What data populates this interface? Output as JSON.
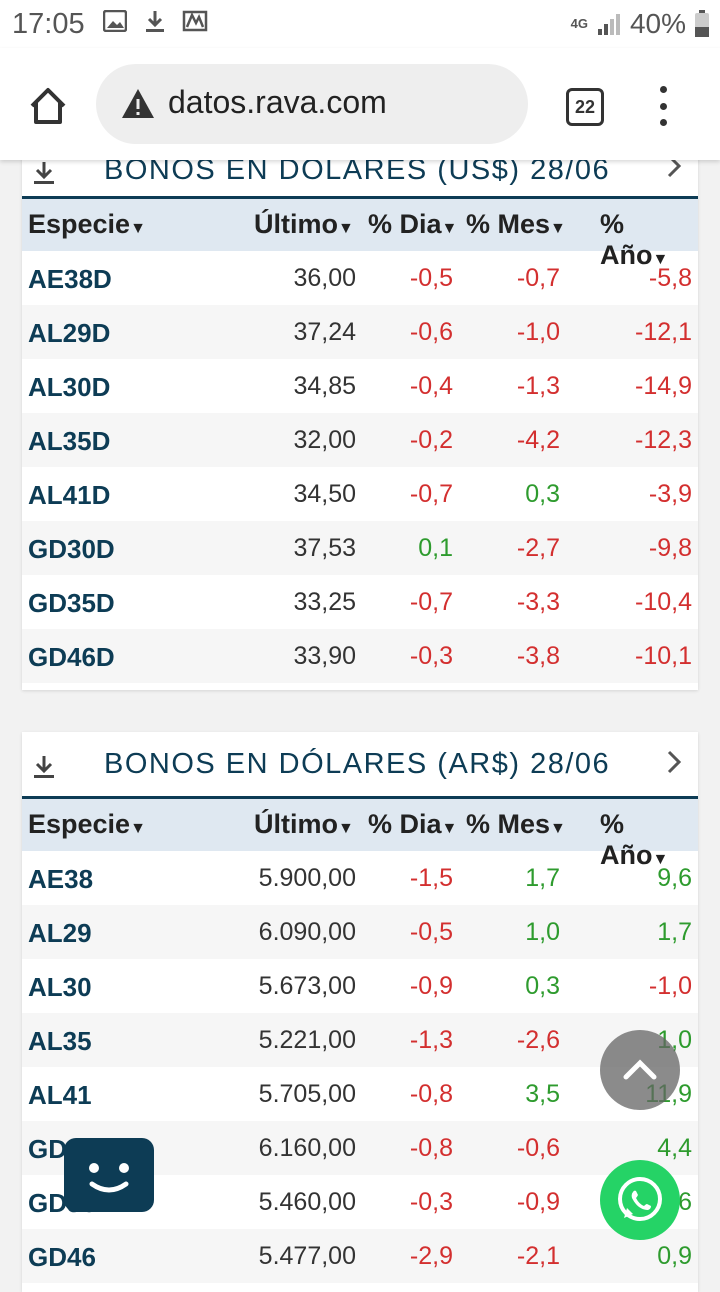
{
  "status_bar": {
    "time": "17:05",
    "network": "4G",
    "battery": "40%"
  },
  "browser": {
    "url": "datos.rava.com",
    "tab_count": "22"
  },
  "table_headers": {
    "especie": "Especie",
    "ultimo": "Último",
    "dia": "% Dia",
    "mes": "% Mes",
    "ano": "% Año"
  },
  "sections": [
    {
      "title": "BONOS EN DOLARES (US$) 28/06",
      "rows": [
        {
          "especie": "AE38D",
          "ultimo": "36,00",
          "dia": "-0,5",
          "mes": "-0,7",
          "ano": "-5,8"
        },
        {
          "especie": "AL29D",
          "ultimo": "37,24",
          "dia": "-0,6",
          "mes": "-1,0",
          "ano": "-12,1"
        },
        {
          "especie": "AL30D",
          "ultimo": "34,85",
          "dia": "-0,4",
          "mes": "-1,3",
          "ano": "-14,9"
        },
        {
          "especie": "AL35D",
          "ultimo": "32,00",
          "dia": "-0,2",
          "mes": "-4,2",
          "ano": "-12,3"
        },
        {
          "especie": "AL41D",
          "ultimo": "34,50",
          "dia": "-0,7",
          "mes": "0,3",
          "ano": "-3,9"
        },
        {
          "especie": "GD30D",
          "ultimo": "37,53",
          "dia": "0,1",
          "mes": "-2,7",
          "ano": "-9,8"
        },
        {
          "especie": "GD35D",
          "ultimo": "33,25",
          "dia": "-0,7",
          "mes": "-3,3",
          "ano": "-10,4"
        },
        {
          "especie": "GD46D",
          "ultimo": "33,90",
          "dia": "-0,3",
          "mes": "-3,8",
          "ano": "-10,1"
        }
      ]
    },
    {
      "title": "BONOS EN DÓLARES (AR$) 28/06",
      "rows": [
        {
          "especie": "AE38",
          "ultimo": "5.900,00",
          "dia": "-1,5",
          "mes": "1,7",
          "ano": "9,6"
        },
        {
          "especie": "AL29",
          "ultimo": "6.090,00",
          "dia": "-0,5",
          "mes": "1,0",
          "ano": "1,7"
        },
        {
          "especie": "AL30",
          "ultimo": "5.673,00",
          "dia": "-0,9",
          "mes": "0,3",
          "ano": "-1,0"
        },
        {
          "especie": "AL35",
          "ultimo": "5.221,00",
          "dia": "-1,3",
          "mes": "-2,6",
          "ano": "1,0"
        },
        {
          "especie": "AL41",
          "ultimo": "5.705,00",
          "dia": "-0,8",
          "mes": "3,5",
          "ano": "11,9"
        },
        {
          "especie": "GD30",
          "ultimo": "6.160,00",
          "dia": "-0,8",
          "mes": "-0,6",
          "ano": "4,4"
        },
        {
          "especie": "GD35",
          "ultimo": "5.460,00",
          "dia": "-0,3",
          "mes": "-0,9",
          "ano": "2,6"
        },
        {
          "especie": "GD46",
          "ultimo": "5.477,00",
          "dia": "-2,9",
          "mes": "-2,1",
          "ano": "0,9"
        }
      ]
    }
  ],
  "icons": {
    "home": "home-icon",
    "warning": "warning-icon",
    "menu": "more-vert-icon",
    "download": "download-icon",
    "chevron": "chevron-right-icon",
    "scroll_top": "arrow-up-icon",
    "whatsapp": "whatsapp-icon",
    "chat": "chatbot-icon"
  },
  "colors": {
    "accent": "#0d3c55",
    "negative": "#d32f2f",
    "positive": "#2e9b2e",
    "header_bg": "#dfe8f1"
  }
}
